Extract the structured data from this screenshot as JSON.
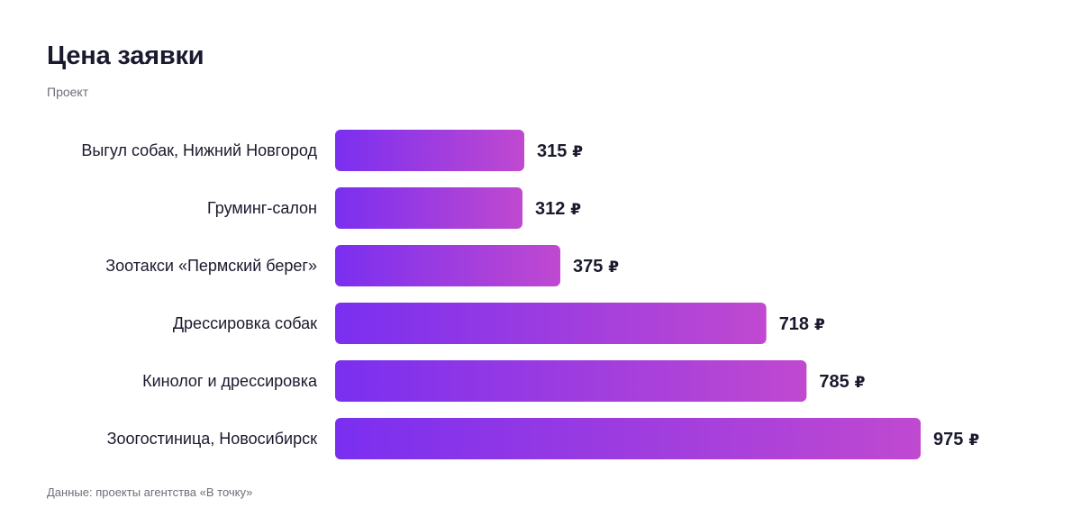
{
  "title": "Цена заявки",
  "subtitle": "Проект",
  "source": "Данные: проекты агентства «В точку»",
  "colors": {
    "bar_start": "#7a2ff0",
    "bar_end": "#c049d0",
    "text": "#1a1a2e",
    "muted": "#6e6e78"
  },
  "chart_data": {
    "type": "bar",
    "orientation": "horizontal",
    "currency": "₽",
    "categories": [
      "Выгул собак, Нижний Новгород",
      "Груминг-салон",
      "Зоотакси «Пермский берег»",
      "Дрессировка собак",
      "Кинолог и дрессировка",
      "Зоогостиница, Новосибирск"
    ],
    "values": [
      315,
      312,
      375,
      718,
      785,
      975
    ],
    "grid": false,
    "legend": "none"
  }
}
